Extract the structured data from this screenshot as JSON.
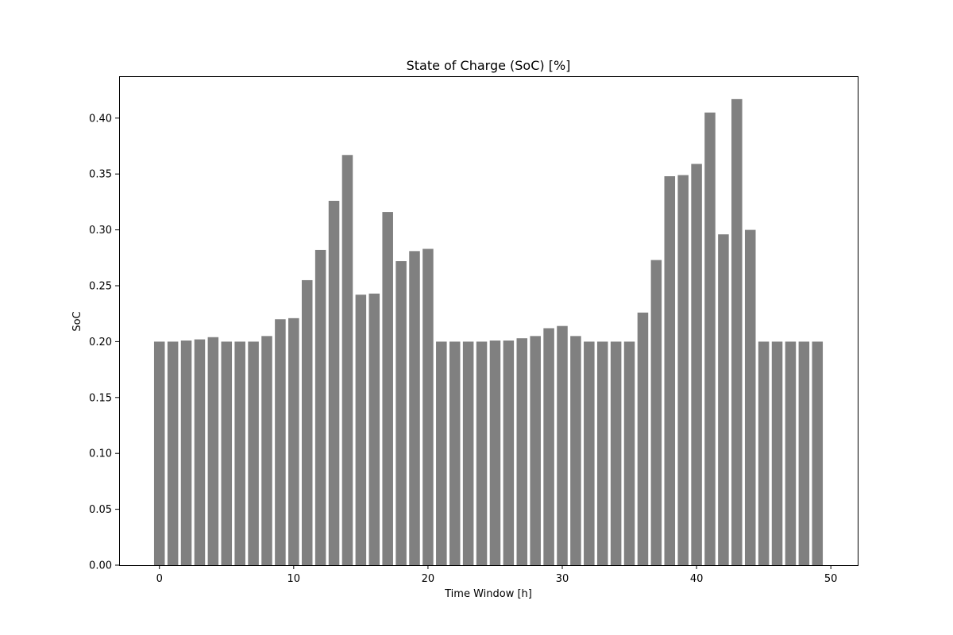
{
  "chart_data": {
    "type": "bar",
    "title": "State of Charge (SoC) [%]",
    "xlabel": "Time Window [h]",
    "ylabel": "SoC",
    "bar_color": "#808080",
    "grid": false,
    "legend": "none",
    "xlim": [
      -3,
      52
    ],
    "ylim": [
      0,
      0.4375
    ],
    "x_ticks": [
      0,
      10,
      20,
      30,
      40,
      50
    ],
    "y_ticks": [
      0.0,
      0.05,
      0.1,
      0.15,
      0.2,
      0.25,
      0.3,
      0.35,
      0.4
    ],
    "x_tick_labels": [
      "0",
      "10",
      "20",
      "30",
      "40",
      "50"
    ],
    "y_tick_labels": [
      "0.00",
      "0.05",
      "0.10",
      "0.15",
      "0.20",
      "0.25",
      "0.30",
      "0.35",
      "0.40"
    ],
    "x": [
      0,
      1,
      2,
      3,
      4,
      5,
      6,
      7,
      8,
      9,
      10,
      11,
      12,
      13,
      14,
      15,
      16,
      17,
      18,
      19,
      20,
      21,
      22,
      23,
      24,
      25,
      26,
      27,
      28,
      29,
      30,
      31,
      32,
      33,
      34,
      35,
      36,
      37,
      38,
      39,
      40,
      41,
      42,
      43,
      44,
      45,
      46,
      47,
      48,
      49
    ],
    "values": [
      0.2,
      0.2,
      0.201,
      0.202,
      0.204,
      0.2,
      0.2,
      0.2,
      0.205,
      0.22,
      0.221,
      0.255,
      0.282,
      0.326,
      0.367,
      0.242,
      0.243,
      0.316,
      0.272,
      0.281,
      0.283,
      0.2,
      0.2,
      0.2,
      0.2,
      0.201,
      0.201,
      0.203,
      0.205,
      0.212,
      0.214,
      0.205,
      0.2,
      0.2,
      0.2,
      0.2,
      0.226,
      0.273,
      0.348,
      0.349,
      0.359,
      0.405,
      0.296,
      0.417,
      0.3,
      0.2,
      0.2,
      0.2,
      0.2,
      0.2
    ]
  }
}
